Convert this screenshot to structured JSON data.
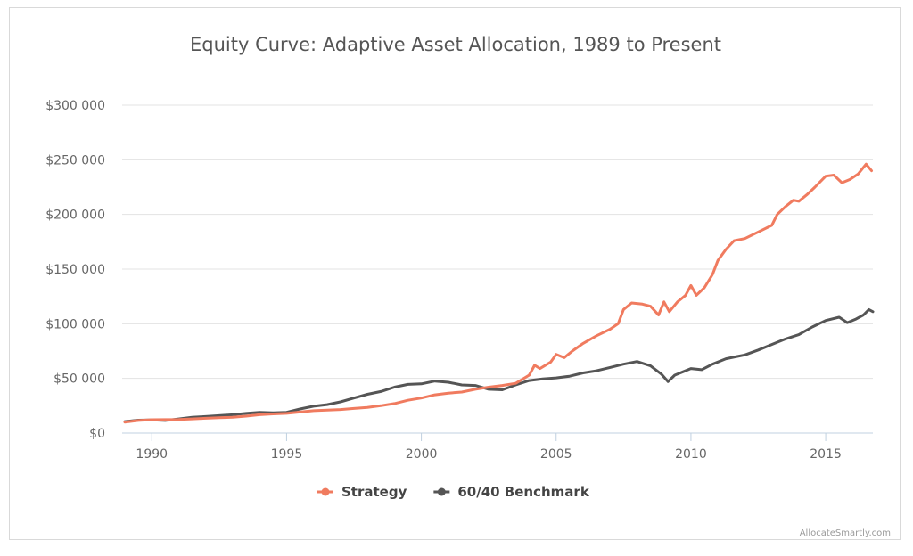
{
  "chart_data": {
    "type": "line",
    "title": "Equity Curve: Adaptive Asset Allocation, 1989 to Present",
    "xlabel": "",
    "ylabel": "",
    "xlim": [
      1988.9,
      2016.75
    ],
    "ylim": [
      0,
      300000
    ],
    "x_ticks": [
      1990,
      1995,
      2000,
      2005,
      2010,
      2015
    ],
    "y_ticks": [
      0,
      50000,
      100000,
      150000,
      200000,
      250000,
      300000
    ],
    "y_tick_labels": [
      "$0",
      "$50 000",
      "$100 000",
      "$150 000",
      "$200 000",
      "$250 000",
      "$300 000"
    ],
    "grid": "horizontal",
    "legend_position": "bottom-center",
    "credit": "AllocateSmartly.com",
    "series": [
      {
        "name": "Strategy",
        "color": "#f07b5f",
        "points": [
          [
            1989.0,
            10000
          ],
          [
            1989.5,
            11500
          ],
          [
            1990.0,
            12200
          ],
          [
            1990.5,
            12300
          ],
          [
            1991.0,
            12400
          ],
          [
            1991.5,
            13000
          ],
          [
            1992.0,
            13500
          ],
          [
            1992.5,
            14000
          ],
          [
            1993.0,
            14500
          ],
          [
            1993.5,
            15500
          ],
          [
            1994.0,
            16800
          ],
          [
            1994.5,
            17500
          ],
          [
            1995.0,
            18000
          ],
          [
            1995.5,
            19200
          ],
          [
            1996.0,
            20500
          ],
          [
            1996.5,
            21000
          ],
          [
            1997.0,
            21500
          ],
          [
            1997.5,
            22500
          ],
          [
            1998.0,
            23500
          ],
          [
            1998.5,
            25000
          ],
          [
            1999.0,
            27000
          ],
          [
            1999.5,
            30000
          ],
          [
            2000.0,
            32000
          ],
          [
            2000.5,
            35000
          ],
          [
            2001.0,
            36500
          ],
          [
            2001.5,
            37500
          ],
          [
            2002.0,
            40000
          ],
          [
            2002.5,
            42000
          ],
          [
            2003.0,
            43500
          ],
          [
            2003.5,
            45500
          ],
          [
            2004.0,
            53000
          ],
          [
            2004.2,
            62000
          ],
          [
            2004.4,
            59000
          ],
          [
            2004.8,
            65000
          ],
          [
            2005.0,
            72000
          ],
          [
            2005.3,
            69000
          ],
          [
            2005.6,
            75000
          ],
          [
            2006.0,
            82000
          ],
          [
            2006.5,
            89000
          ],
          [
            2007.0,
            95000
          ],
          [
            2007.3,
            100000
          ],
          [
            2007.5,
            113000
          ],
          [
            2007.8,
            119000
          ],
          [
            2008.2,
            118000
          ],
          [
            2008.5,
            116000
          ],
          [
            2008.8,
            108000
          ],
          [
            2009.0,
            120000
          ],
          [
            2009.2,
            111000
          ],
          [
            2009.5,
            120000
          ],
          [
            2009.8,
            126000
          ],
          [
            2010.0,
            135000
          ],
          [
            2010.2,
            126000
          ],
          [
            2010.5,
            133000
          ],
          [
            2010.8,
            145000
          ],
          [
            2011.0,
            158000
          ],
          [
            2011.3,
            168000
          ],
          [
            2011.6,
            176000
          ],
          [
            2012.0,
            178000
          ],
          [
            2012.5,
            184000
          ],
          [
            2013.0,
            190000
          ],
          [
            2013.2,
            200000
          ],
          [
            2013.5,
            207000
          ],
          [
            2013.8,
            213000
          ],
          [
            2014.0,
            212000
          ],
          [
            2014.3,
            218000
          ],
          [
            2014.6,
            225000
          ],
          [
            2015.0,
            235000
          ],
          [
            2015.3,
            236000
          ],
          [
            2015.6,
            229000
          ],
          [
            2015.9,
            232000
          ],
          [
            2016.2,
            237000
          ],
          [
            2016.5,
            246000
          ],
          [
            2016.7,
            240000
          ]
        ]
      },
      {
        "name": "60/40 Benchmark",
        "color": "#555555",
        "points": [
          [
            1989.0,
            10500
          ],
          [
            1989.5,
            11800
          ],
          [
            1990.0,
            12000
          ],
          [
            1990.5,
            11500
          ],
          [
            1991.0,
            13000
          ],
          [
            1991.5,
            14500
          ],
          [
            1992.0,
            15200
          ],
          [
            1992.5,
            16000
          ],
          [
            1993.0,
            16800
          ],
          [
            1993.5,
            18000
          ],
          [
            1994.0,
            19000
          ],
          [
            1994.5,
            18500
          ],
          [
            1995.0,
            19000
          ],
          [
            1995.5,
            22000
          ],
          [
            1996.0,
            24500
          ],
          [
            1996.5,
            26000
          ],
          [
            1997.0,
            28500
          ],
          [
            1997.5,
            32000
          ],
          [
            1998.0,
            35500
          ],
          [
            1998.5,
            38000
          ],
          [
            1999.0,
            42000
          ],
          [
            1999.5,
            44500
          ],
          [
            2000.0,
            45000
          ],
          [
            2000.5,
            47500
          ],
          [
            2001.0,
            46500
          ],
          [
            2001.5,
            44000
          ],
          [
            2002.0,
            43500
          ],
          [
            2002.5,
            40000
          ],
          [
            2003.0,
            39500
          ],
          [
            2003.5,
            44000
          ],
          [
            2004.0,
            48000
          ],
          [
            2004.5,
            49500
          ],
          [
            2005.0,
            50500
          ],
          [
            2005.5,
            52000
          ],
          [
            2006.0,
            55000
          ],
          [
            2006.5,
            57000
          ],
          [
            2007.0,
            60000
          ],
          [
            2007.5,
            63000
          ],
          [
            2008.0,
            65500
          ],
          [
            2008.5,
            61500
          ],
          [
            2008.9,
            54000
          ],
          [
            2009.15,
            47000
          ],
          [
            2009.4,
            53000
          ],
          [
            2009.7,
            56000
          ],
          [
            2010.0,
            59000
          ],
          [
            2010.4,
            58000
          ],
          [
            2010.8,
            63000
          ],
          [
            2011.3,
            68000
          ],
          [
            2011.7,
            70000
          ],
          [
            2012.0,
            71500
          ],
          [
            2012.5,
            76000
          ],
          [
            2013.0,
            81000
          ],
          [
            2013.5,
            86000
          ],
          [
            2014.0,
            90000
          ],
          [
            2014.5,
            97000
          ],
          [
            2015.0,
            103000
          ],
          [
            2015.5,
            106000
          ],
          [
            2015.8,
            101000
          ],
          [
            2016.1,
            104000
          ],
          [
            2016.4,
            108000
          ],
          [
            2016.6,
            113000
          ],
          [
            2016.75,
            111000
          ]
        ]
      }
    ]
  }
}
